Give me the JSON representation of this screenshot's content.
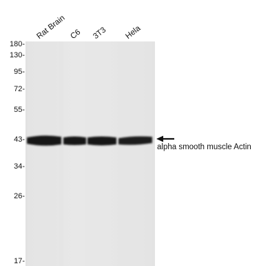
{
  "lanes": [
    {
      "label": "Rat Brain"
    },
    {
      "label": "C6"
    },
    {
      "label": "3T3"
    },
    {
      "label": "Hela"
    }
  ],
  "mw_markers": [
    {
      "label": "180-"
    },
    {
      "label": "130-"
    },
    {
      "label": "95-"
    },
    {
      "label": "72-"
    },
    {
      "label": "55-"
    },
    {
      "label": "43-"
    },
    {
      "label": "34-"
    },
    {
      "label": "26-"
    },
    {
      "label": "17-"
    }
  ],
  "target": {
    "label": "alpha smooth muscle Actin",
    "arrow_icon": "left-arrow-icon"
  },
  "colors": {
    "membrane": "#e4e4e4",
    "band": "#141414",
    "text": "#111111"
  }
}
